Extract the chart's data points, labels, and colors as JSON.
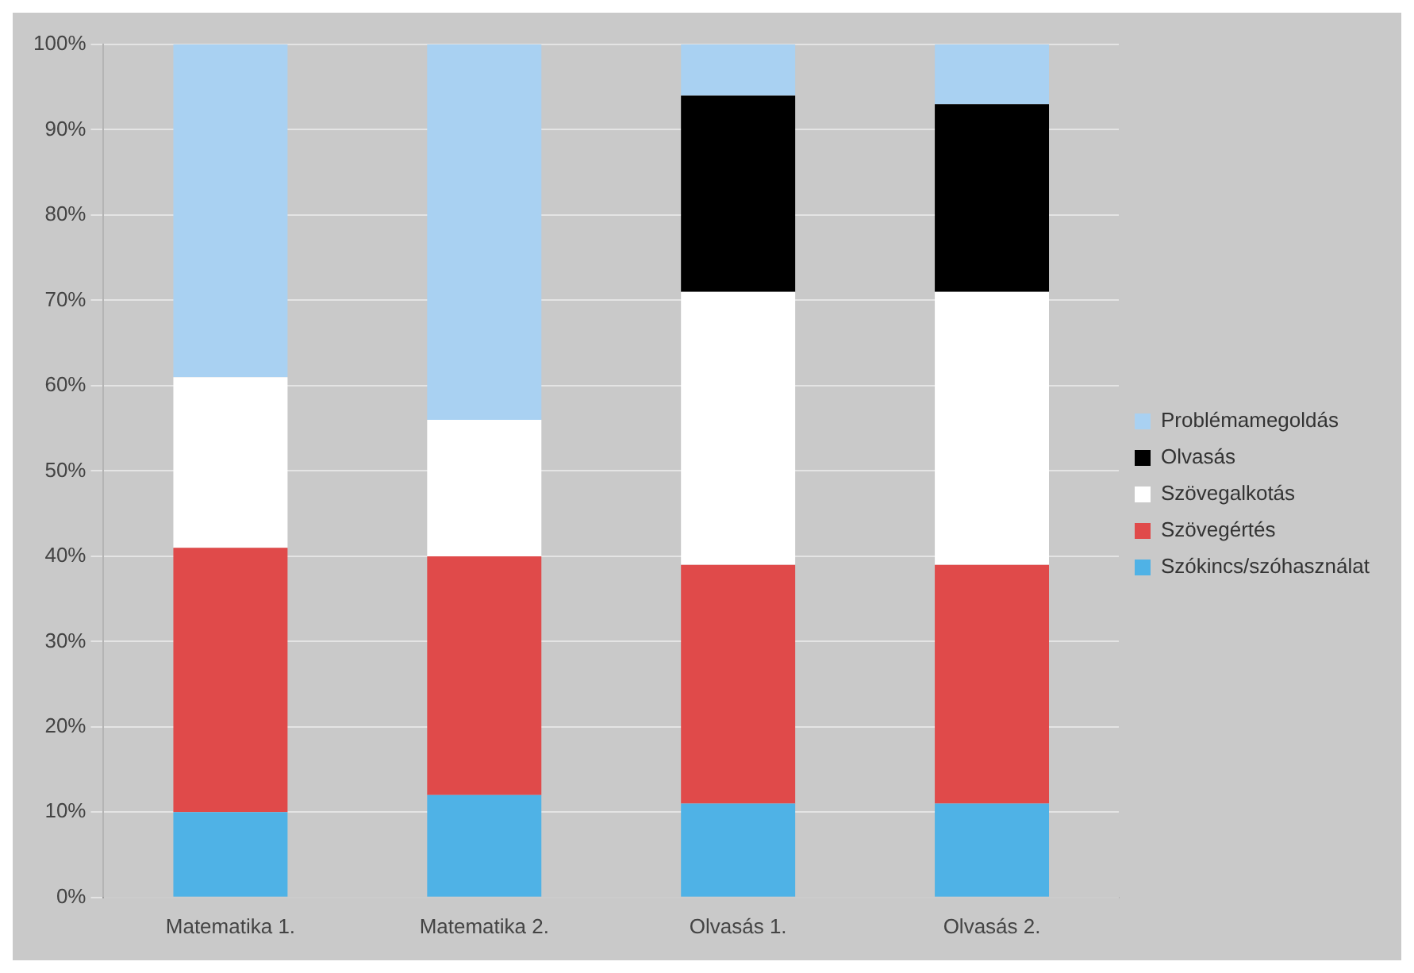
{
  "chart_data": {
    "type": "bar",
    "stacked": true,
    "categories": [
      "Matematika 1.",
      "Matematika 2.",
      "Olvasás 1.",
      "Olvasás 2."
    ],
    "series": [
      {
        "name": "Szókincs/szóhasználat",
        "color": "#4fb2e6",
        "values": [
          10,
          12,
          11,
          11
        ]
      },
      {
        "name": "Szövegértés",
        "color": "#e04a4a",
        "values": [
          31,
          28,
          28,
          28
        ]
      },
      {
        "name": "Szövegalkotás",
        "color": "#ffffff",
        "values": [
          20,
          16,
          32,
          32
        ]
      },
      {
        "name": "Olvasás",
        "color": "#000000",
        "values": [
          0,
          0,
          23,
          22
        ]
      },
      {
        "name": "Problémamegoldás",
        "color": "#a9d1f2",
        "values": [
          39,
          44,
          6,
          7
        ]
      }
    ],
    "ylim": [
      0,
      100
    ],
    "yticks": [
      {
        "value": 0,
        "label": "0%"
      },
      {
        "value": 10,
        "label": "10%"
      },
      {
        "value": 20,
        "label": "20%"
      },
      {
        "value": 30,
        "label": "30%"
      },
      {
        "value": 40,
        "label": "40%"
      },
      {
        "value": 50,
        "label": "50%"
      },
      {
        "value": 60,
        "label": "60%"
      },
      {
        "value": 70,
        "label": "70%"
      },
      {
        "value": 80,
        "label": "80%"
      },
      {
        "value": 90,
        "label": "90%"
      },
      {
        "value": 100,
        "label": "100%"
      }
    ],
    "grid": "y",
    "legend": "right"
  }
}
